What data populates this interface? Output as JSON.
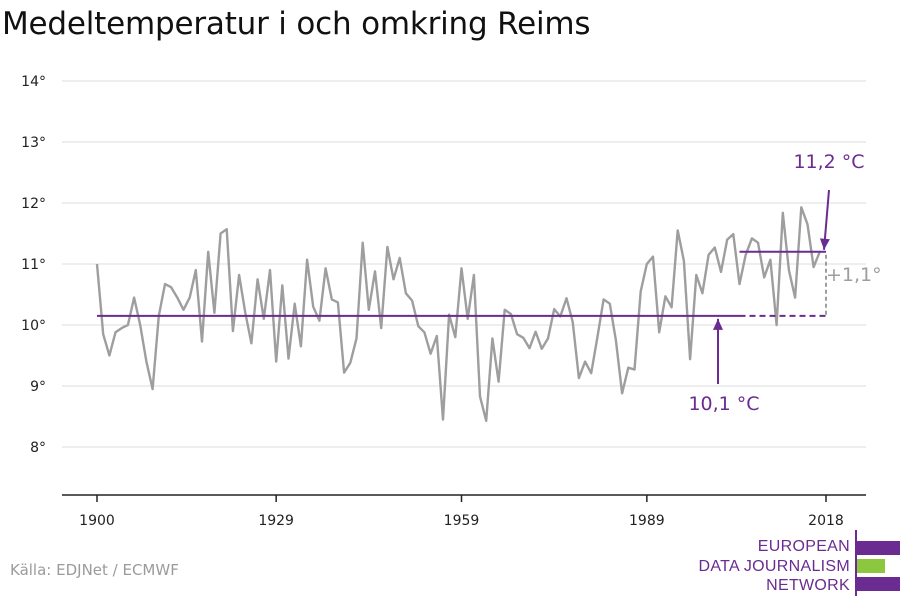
{
  "title": "Medeltemperatur i och omkring Reims",
  "source": "Källa: EDJNet / ECMWF",
  "logo": {
    "lines": [
      "EUROPEAN",
      "DATA JOURNALISM",
      "NETWORK"
    ],
    "colors": {
      "purple": "#6a2c91",
      "green": "#8dc63f"
    }
  },
  "chart_data": {
    "type": "line",
    "title": "Medeltemperatur i och omkring Reims",
    "xlabel": "",
    "ylabel": "",
    "xlim": [
      1900,
      2018
    ],
    "ylim": [
      8,
      14
    ],
    "x_ticks": [
      1900,
      1929,
      1959,
      1989,
      2018
    ],
    "y_ticks": [
      8,
      9,
      10,
      11,
      12,
      13,
      14
    ],
    "y_tick_suffix": "°",
    "grid": "horizontal",
    "series": [
      {
        "color": "#9e9e9e",
        "x_start": 1900,
        "values": [
          11.0,
          9.85,
          9.5,
          9.88,
          9.95,
          10.0,
          10.45,
          10.0,
          9.4,
          8.95,
          10.15,
          10.67,
          10.62,
          10.45,
          10.25,
          10.45,
          10.9,
          9.73,
          11.2,
          10.2,
          11.5,
          11.57,
          9.9,
          10.82,
          10.2,
          9.7,
          10.75,
          10.1,
          10.9,
          9.4,
          10.65,
          9.45,
          10.35,
          9.65,
          11.07,
          10.3,
          10.07,
          10.93,
          10.42,
          10.37,
          9.22,
          9.38,
          9.78,
          11.35,
          10.25,
          10.88,
          9.95,
          11.28,
          10.75,
          11.1,
          10.52,
          10.4,
          9.98,
          9.88,
          9.53,
          9.82,
          8.45,
          10.17,
          9.8,
          10.93,
          10.1,
          10.82,
          8.83,
          8.43,
          9.78,
          9.07,
          10.25,
          10.18,
          9.85,
          9.79,
          9.62,
          9.89,
          9.61,
          9.78,
          10.26,
          10.14,
          10.44,
          10.05,
          9.13,
          9.4,
          9.21,
          9.8,
          10.42,
          10.35,
          9.75,
          8.88,
          9.3,
          9.27,
          10.55,
          11.0,
          11.12,
          9.88,
          10.47,
          10.29,
          11.55,
          11.05,
          9.44,
          10.82,
          10.52,
          11.15,
          11.27,
          10.87,
          11.4,
          11.49,
          10.67,
          11.15,
          11.42,
          11.35,
          10.78,
          11.07,
          10.0,
          11.84,
          10.9,
          10.45,
          11.93,
          11.65,
          10.95,
          11.2
        ]
      }
    ],
    "baseline": {
      "value": 10.15,
      "from": 1900,
      "to": 2018,
      "solid_until": 2004,
      "label": "10,1 °C",
      "color": "#6a2c91"
    },
    "recent": {
      "value": 11.2,
      "from": 2004,
      "to": 2018,
      "label": "11,2 °C",
      "color": "#6a2c91"
    },
    "difference": {
      "label": "+1,1°",
      "color": "#9e9e9e"
    }
  }
}
